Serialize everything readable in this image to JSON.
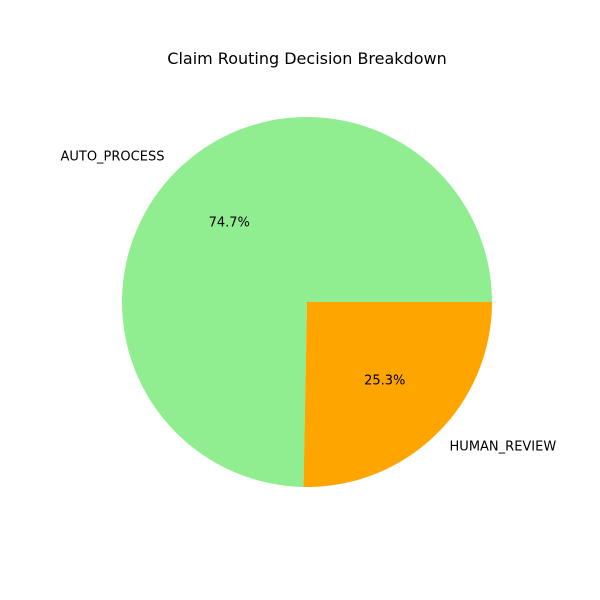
{
  "chart_data": {
    "type": "pie",
    "title": "Claim Routing Decision Breakdown",
    "categories": [
      "AUTO_PROCESS",
      "HUMAN_REVIEW"
    ],
    "values": [
      74.7,
      25.3
    ],
    "percent_labels": [
      "74.7%",
      "25.3%"
    ],
    "colors": [
      "#90ee90",
      "#ffa500"
    ],
    "start_angle": "0 degrees (3 o'clock), counterclockwise",
    "legend": "none"
  }
}
